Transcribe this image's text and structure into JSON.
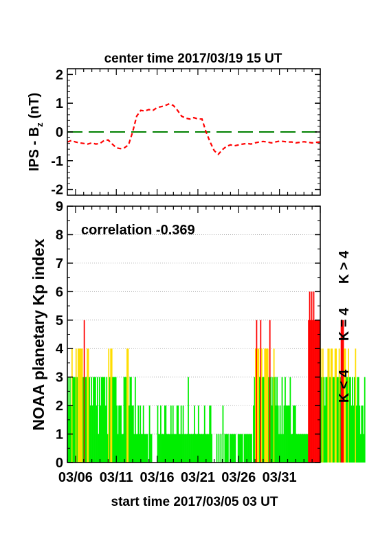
{
  "colors": {
    "bz_line": "#ff0000",
    "zero_line": "#008000",
    "k_low": "#00ee00",
    "k_mid": "#ffdd00",
    "k_high": "#ff0000",
    "axis": "#000000",
    "grid": "#999999"
  },
  "chart_data": [
    {
      "type": "line",
      "title": "center time 2017/03/19 15 UT",
      "ylabel": "IPS - B",
      "ylabel_subscript": "z",
      "ylabel_unit": " (nT)",
      "xlim": [
        0,
        31
      ],
      "ylim": [
        -2.2,
        2.2
      ],
      "yticks": [
        "2",
        "1",
        "0",
        "-1",
        "-2"
      ],
      "ytick_values": [
        2,
        1,
        0,
        -1,
        -2
      ],
      "series": [
        {
          "style": "dashed",
          "x": [
            0,
            0.5,
            1,
            1.5,
            2,
            2.5,
            3,
            3.5,
            4,
            4.5,
            5,
            5.5,
            6,
            6.5,
            7,
            7.5,
            8,
            8.5,
            9,
            9.5,
            10,
            10.5,
            11,
            11.5,
            12,
            12.5,
            13,
            13.5,
            14,
            14.5,
            15,
            15.5,
            16,
            16.5,
            17,
            17.5,
            18,
            18.5,
            19,
            19.5,
            20,
            20.5,
            21,
            21.5,
            22,
            22.5,
            23,
            23.5,
            24,
            24.5,
            25,
            25.5,
            26,
            26.5,
            27,
            27.5,
            28,
            28.5,
            29,
            29.5,
            30,
            30.5,
            31
          ],
          "values": [
            -0.35,
            -0.3,
            -0.35,
            -0.38,
            -0.4,
            -0.42,
            -0.38,
            -0.42,
            -0.4,
            -0.3,
            -0.28,
            -0.42,
            -0.55,
            -0.58,
            -0.55,
            -0.45,
            0.0,
            0.55,
            0.75,
            0.73,
            0.78,
            0.75,
            0.85,
            0.88,
            0.92,
            0.98,
            0.92,
            0.75,
            0.55,
            0.48,
            0.45,
            0.5,
            0.45,
            0.45,
            0.0,
            -0.35,
            -0.65,
            -0.78,
            -0.62,
            -0.5,
            -0.45,
            -0.48,
            -0.45,
            -0.42,
            -0.4,
            -0.42,
            -0.38,
            -0.35,
            -0.33,
            -0.35,
            -0.38,
            -0.35,
            -0.32,
            -0.33,
            -0.35,
            -0.35,
            -0.38,
            -0.36,
            -0.34,
            -0.36,
            -0.38,
            -0.36,
            -0.35
          ]
        },
        {
          "style": "long-dashed",
          "x": [
            0,
            31
          ],
          "values": [
            0,
            0
          ]
        }
      ]
    },
    {
      "type": "bar",
      "ylabel": "NOAA planetary Kp index",
      "xlabel": "start time 2017/03/05 03 UT",
      "annotation": "correlation -0.369",
      "xlim": [
        0,
        31
      ],
      "ylim": [
        0,
        9
      ],
      "yticks": [
        "0",
        "1",
        "2",
        "3",
        "4",
        "5",
        "6",
        "7",
        "8",
        "9"
      ],
      "grid": "dotted horizontal",
      "xticks": [
        {
          "label": "03/06",
          "x": 1
        },
        {
          "label": "03/11",
          "x": 6
        },
        {
          "label": "03/16",
          "x": 11
        },
        {
          "label": "03/21",
          "x": 16
        },
        {
          "label": "03/26",
          "x": 21
        },
        {
          "label": "03/31",
          "x": 26
        }
      ],
      "legend": [
        {
          "label": "K > 4",
          "color": "#ff0000"
        },
        {
          "label": "K = 4",
          "color": "#ffdd00"
        },
        {
          "label": "K < 4",
          "color": "#00ee00"
        }
      ],
      "bar_width": 0.125,
      "values": [
        3,
        2,
        3,
        2,
        4,
        3,
        3,
        3,
        4,
        3,
        4,
        4,
        4,
        4,
        4,
        3,
        5,
        3,
        3,
        4,
        4,
        3,
        2,
        3,
        2,
        3,
        3,
        3,
        2,
        3,
        1,
        3,
        2,
        3,
        3,
        3,
        3,
        2,
        3,
        1,
        4,
        3,
        4,
        4,
        3,
        3,
        3,
        3,
        2,
        1,
        2,
        2,
        2,
        1,
        1,
        3,
        3,
        3,
        4,
        4,
        2,
        3,
        3,
        2,
        2,
        1,
        3,
        1,
        1,
        2,
        1,
        2,
        1,
        1,
        2,
        1,
        1,
        1,
        1,
        0,
        2,
        1,
        1,
        0,
        0,
        0,
        0,
        0,
        2,
        1,
        1,
        2,
        1,
        1,
        1,
        2,
        2,
        1,
        1,
        1,
        1,
        2,
        1,
        2,
        1,
        1,
        1,
        2,
        2,
        1,
        1,
        2,
        1,
        2,
        1,
        1,
        1,
        1,
        3,
        1,
        1,
        1,
        1,
        1,
        2,
        1,
        1,
        1,
        2,
        1,
        1,
        1,
        1,
        1,
        2,
        1,
        1,
        1,
        1,
        2,
        2,
        1,
        0,
        0,
        0,
        0,
        1,
        0,
        1,
        0,
        1,
        0,
        2,
        0,
        1,
        1,
        1,
        1,
        0,
        1,
        1,
        1,
        1,
        1,
        1,
        0,
        0,
        1,
        1,
        1,
        1,
        1,
        0,
        1,
        1,
        1,
        1,
        1,
        1,
        1,
        1,
        0,
        2,
        3,
        4,
        5,
        4,
        4,
        3,
        5,
        4,
        3,
        3,
        4,
        4,
        4,
        4,
        3,
        5,
        3,
        2,
        3,
        4,
        3,
        2,
        3,
        2,
        1,
        2,
        1,
        3,
        1,
        2,
        3,
        2,
        2,
        2,
        2,
        3,
        1,
        1,
        2,
        2,
        2,
        1,
        1,
        1,
        1,
        1,
        1,
        1,
        1,
        1,
        1,
        1,
        1,
        5,
        6,
        5,
        6,
        5,
        6,
        5,
        5,
        5,
        5,
        5,
        5,
        4,
        3,
        4,
        3,
        2,
        3,
        3,
        4,
        4,
        3,
        4,
        4,
        3,
        3,
        4,
        4,
        3,
        3,
        4,
        3,
        5,
        5,
        5,
        4,
        4,
        3,
        3,
        4,
        3,
        3,
        2,
        3,
        2,
        3,
        4,
        2,
        3,
        3,
        2,
        1,
        2,
        2,
        1,
        3
      ]
    }
  ]
}
